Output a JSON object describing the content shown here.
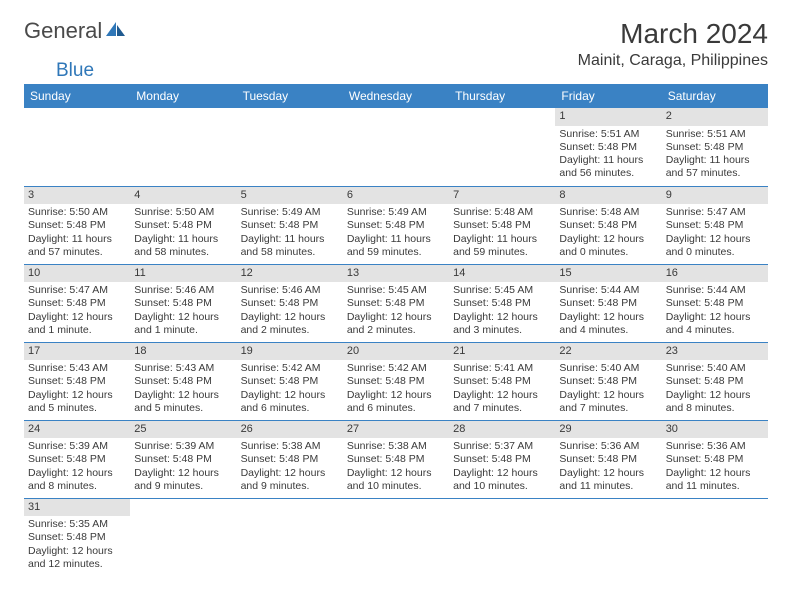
{
  "logo": {
    "general": "General",
    "blue": "Blue"
  },
  "title": "March 2024",
  "location": "Mainit, Caraga, Philippines",
  "colors": {
    "header_bg": "#3a82c4",
    "header_text": "#ffffff",
    "daynum_bg": "#e3e3e3",
    "text": "#3a3a3a",
    "logo_blue": "#2f77b8",
    "rule": "#3a82c4",
    "page_bg": "#ffffff"
  },
  "weekdays": [
    "Sunday",
    "Monday",
    "Tuesday",
    "Wednesday",
    "Thursday",
    "Friday",
    "Saturday"
  ],
  "weeks": [
    [
      {
        "n": "",
        "sr": "",
        "ss": "",
        "dl": ""
      },
      {
        "n": "",
        "sr": "",
        "ss": "",
        "dl": ""
      },
      {
        "n": "",
        "sr": "",
        "ss": "",
        "dl": ""
      },
      {
        "n": "",
        "sr": "",
        "ss": "",
        "dl": ""
      },
      {
        "n": "",
        "sr": "",
        "ss": "",
        "dl": ""
      },
      {
        "n": "1",
        "sr": "Sunrise: 5:51 AM",
        "ss": "Sunset: 5:48 PM",
        "dl": "Daylight: 11 hours and 56 minutes."
      },
      {
        "n": "2",
        "sr": "Sunrise: 5:51 AM",
        "ss": "Sunset: 5:48 PM",
        "dl": "Daylight: 11 hours and 57 minutes."
      }
    ],
    [
      {
        "n": "3",
        "sr": "Sunrise: 5:50 AM",
        "ss": "Sunset: 5:48 PM",
        "dl": "Daylight: 11 hours and 57 minutes."
      },
      {
        "n": "4",
        "sr": "Sunrise: 5:50 AM",
        "ss": "Sunset: 5:48 PM",
        "dl": "Daylight: 11 hours and 58 minutes."
      },
      {
        "n": "5",
        "sr": "Sunrise: 5:49 AM",
        "ss": "Sunset: 5:48 PM",
        "dl": "Daylight: 11 hours and 58 minutes."
      },
      {
        "n": "6",
        "sr": "Sunrise: 5:49 AM",
        "ss": "Sunset: 5:48 PM",
        "dl": "Daylight: 11 hours and 59 minutes."
      },
      {
        "n": "7",
        "sr": "Sunrise: 5:48 AM",
        "ss": "Sunset: 5:48 PM",
        "dl": "Daylight: 11 hours and 59 minutes."
      },
      {
        "n": "8",
        "sr": "Sunrise: 5:48 AM",
        "ss": "Sunset: 5:48 PM",
        "dl": "Daylight: 12 hours and 0 minutes."
      },
      {
        "n": "9",
        "sr": "Sunrise: 5:47 AM",
        "ss": "Sunset: 5:48 PM",
        "dl": "Daylight: 12 hours and 0 minutes."
      }
    ],
    [
      {
        "n": "10",
        "sr": "Sunrise: 5:47 AM",
        "ss": "Sunset: 5:48 PM",
        "dl": "Daylight: 12 hours and 1 minute."
      },
      {
        "n": "11",
        "sr": "Sunrise: 5:46 AM",
        "ss": "Sunset: 5:48 PM",
        "dl": "Daylight: 12 hours and 1 minute."
      },
      {
        "n": "12",
        "sr": "Sunrise: 5:46 AM",
        "ss": "Sunset: 5:48 PM",
        "dl": "Daylight: 12 hours and 2 minutes."
      },
      {
        "n": "13",
        "sr": "Sunrise: 5:45 AM",
        "ss": "Sunset: 5:48 PM",
        "dl": "Daylight: 12 hours and 2 minutes."
      },
      {
        "n": "14",
        "sr": "Sunrise: 5:45 AM",
        "ss": "Sunset: 5:48 PM",
        "dl": "Daylight: 12 hours and 3 minutes."
      },
      {
        "n": "15",
        "sr": "Sunrise: 5:44 AM",
        "ss": "Sunset: 5:48 PM",
        "dl": "Daylight: 12 hours and 4 minutes."
      },
      {
        "n": "16",
        "sr": "Sunrise: 5:44 AM",
        "ss": "Sunset: 5:48 PM",
        "dl": "Daylight: 12 hours and 4 minutes."
      }
    ],
    [
      {
        "n": "17",
        "sr": "Sunrise: 5:43 AM",
        "ss": "Sunset: 5:48 PM",
        "dl": "Daylight: 12 hours and 5 minutes."
      },
      {
        "n": "18",
        "sr": "Sunrise: 5:43 AM",
        "ss": "Sunset: 5:48 PM",
        "dl": "Daylight: 12 hours and 5 minutes."
      },
      {
        "n": "19",
        "sr": "Sunrise: 5:42 AM",
        "ss": "Sunset: 5:48 PM",
        "dl": "Daylight: 12 hours and 6 minutes."
      },
      {
        "n": "20",
        "sr": "Sunrise: 5:42 AM",
        "ss": "Sunset: 5:48 PM",
        "dl": "Daylight: 12 hours and 6 minutes."
      },
      {
        "n": "21",
        "sr": "Sunrise: 5:41 AM",
        "ss": "Sunset: 5:48 PM",
        "dl": "Daylight: 12 hours and 7 minutes."
      },
      {
        "n": "22",
        "sr": "Sunrise: 5:40 AM",
        "ss": "Sunset: 5:48 PM",
        "dl": "Daylight: 12 hours and 7 minutes."
      },
      {
        "n": "23",
        "sr": "Sunrise: 5:40 AM",
        "ss": "Sunset: 5:48 PM",
        "dl": "Daylight: 12 hours and 8 minutes."
      }
    ],
    [
      {
        "n": "24",
        "sr": "Sunrise: 5:39 AM",
        "ss": "Sunset: 5:48 PM",
        "dl": "Daylight: 12 hours and 8 minutes."
      },
      {
        "n": "25",
        "sr": "Sunrise: 5:39 AM",
        "ss": "Sunset: 5:48 PM",
        "dl": "Daylight: 12 hours and 9 minutes."
      },
      {
        "n": "26",
        "sr": "Sunrise: 5:38 AM",
        "ss": "Sunset: 5:48 PM",
        "dl": "Daylight: 12 hours and 9 minutes."
      },
      {
        "n": "27",
        "sr": "Sunrise: 5:38 AM",
        "ss": "Sunset: 5:48 PM",
        "dl": "Daylight: 12 hours and 10 minutes."
      },
      {
        "n": "28",
        "sr": "Sunrise: 5:37 AM",
        "ss": "Sunset: 5:48 PM",
        "dl": "Daylight: 12 hours and 10 minutes."
      },
      {
        "n": "29",
        "sr": "Sunrise: 5:36 AM",
        "ss": "Sunset: 5:48 PM",
        "dl": "Daylight: 12 hours and 11 minutes."
      },
      {
        "n": "30",
        "sr": "Sunrise: 5:36 AM",
        "ss": "Sunset: 5:48 PM",
        "dl": "Daylight: 12 hours and 11 minutes."
      }
    ],
    [
      {
        "n": "31",
        "sr": "Sunrise: 5:35 AM",
        "ss": "Sunset: 5:48 PM",
        "dl": "Daylight: 12 hours and 12 minutes."
      },
      {
        "n": "",
        "sr": "",
        "ss": "",
        "dl": ""
      },
      {
        "n": "",
        "sr": "",
        "ss": "",
        "dl": ""
      },
      {
        "n": "",
        "sr": "",
        "ss": "",
        "dl": ""
      },
      {
        "n": "",
        "sr": "",
        "ss": "",
        "dl": ""
      },
      {
        "n": "",
        "sr": "",
        "ss": "",
        "dl": ""
      },
      {
        "n": "",
        "sr": "",
        "ss": "",
        "dl": ""
      }
    ]
  ]
}
